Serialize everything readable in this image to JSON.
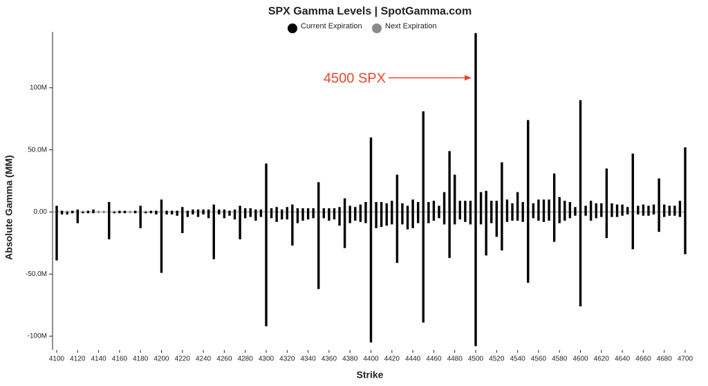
{
  "chart_data": {
    "type": "bar",
    "title": "SPX Gamma Levels | SpotGamma.com",
    "x_label": "Strike",
    "y_label": "Absolute Gamma (MM)",
    "annotation": {
      "text": "4500 SPX",
      "x": 4500,
      "y": 108,
      "color": "#e8472b"
    },
    "x": [
      4100,
      4105,
      4110,
      4115,
      4120,
      4125,
      4130,
      4135,
      4140,
      4145,
      4150,
      4155,
      4160,
      4165,
      4170,
      4175,
      4180,
      4185,
      4190,
      4195,
      4200,
      4205,
      4210,
      4215,
      4220,
      4225,
      4230,
      4235,
      4240,
      4245,
      4250,
      4255,
      4260,
      4265,
      4270,
      4275,
      4280,
      4285,
      4290,
      4295,
      4300,
      4305,
      4310,
      4315,
      4320,
      4325,
      4330,
      4335,
      4340,
      4345,
      4350,
      4355,
      4360,
      4365,
      4370,
      4375,
      4380,
      4385,
      4390,
      4395,
      4400,
      4405,
      4410,
      4415,
      4420,
      4425,
      4430,
      4435,
      4440,
      4445,
      4450,
      4455,
      4460,
      4465,
      4470,
      4475,
      4480,
      4485,
      4490,
      4495,
      4500,
      4505,
      4510,
      4515,
      4520,
      4525,
      4530,
      4535,
      4540,
      4545,
      4550,
      4555,
      4560,
      4565,
      4570,
      4575,
      4580,
      4585,
      4590,
      4595,
      4600,
      4605,
      4610,
      4615,
      4620,
      4625,
      4630,
      4635,
      4640,
      4645,
      4650,
      4655,
      4660,
      4665,
      4670,
      4675,
      4680,
      4685,
      4690,
      4695,
      4700
    ],
    "series": [
      {
        "name": "Next Expiration",
        "color": "#8a8a8a",
        "values": [
          1,
          1,
          1,
          1,
          1,
          1,
          1,
          1,
          1,
          1,
          1,
          1,
          1,
          1,
          1,
          1,
          1,
          1,
          1,
          1,
          1,
          1,
          1,
          1,
          1,
          1,
          1,
          1,
          1,
          1,
          1,
          1,
          1,
          1,
          1,
          1,
          2,
          2,
          2,
          2,
          2,
          2,
          2,
          2,
          2,
          2,
          2,
          2,
          2,
          2,
          2,
          2,
          2,
          2,
          2,
          2,
          2,
          2,
          2,
          2,
          2,
          2,
          2,
          2,
          2,
          2,
          2,
          2,
          2,
          2,
          2,
          2,
          2,
          2,
          2,
          2,
          2,
          2,
          2,
          2,
          2,
          2,
          2,
          2,
          2,
          1,
          1,
          1,
          1,
          1,
          1,
          1,
          1,
          1,
          1,
          1,
          1,
          1,
          1,
          1,
          1,
          1,
          1,
          1,
          1,
          1,
          1,
          1,
          1,
          1,
          1,
          1,
          1,
          1,
          1,
          1,
          1,
          1,
          1,
          1,
          1
        ],
        "lower_values": [
          -1,
          -1,
          -1,
          -1,
          -1,
          -1,
          -1,
          -1,
          -1,
          -1,
          -1,
          -1,
          -1,
          -1,
          -1,
          -1,
          -1,
          -1,
          -1,
          -1,
          -1,
          -1,
          -1,
          -1,
          -1,
          -1,
          -1,
          -1,
          -1,
          -1,
          -1,
          -1,
          -1,
          -1,
          -1,
          -1,
          -3,
          -3,
          -3,
          -3,
          -3,
          -3,
          -3,
          -3,
          -3,
          -3,
          -3,
          -3,
          -3,
          -3,
          -3,
          -3,
          -3,
          -3,
          -3,
          -3,
          -3,
          -3,
          -3,
          -3,
          -3,
          -3,
          -3,
          -3,
          -3,
          -3,
          -3,
          -3,
          -3,
          -3,
          -3,
          -3,
          -3,
          -3,
          -3,
          -3,
          -3,
          -3,
          -3,
          -3,
          -3,
          -3,
          -3,
          -3,
          -3,
          -1,
          -1,
          -1,
          -1,
          -1,
          -1,
          -1,
          -1,
          -1,
          -1,
          -1,
          -1,
          -1,
          -1,
          -1,
          -1,
          -1,
          -1,
          -1,
          -1,
          -1,
          -1,
          -1,
          -1,
          -1,
          -1,
          -1,
          -1,
          -1,
          -1,
          -1,
          -1,
          -1,
          -1,
          -1,
          -1
        ]
      },
      {
        "name": "Current Expiration",
        "color": "#000000",
        "values": [
          5,
          1,
          0,
          1,
          2,
          0,
          1,
          2,
          0,
          0,
          8,
          0,
          1,
          1,
          0,
          1,
          5,
          0,
          1,
          1,
          10,
          1,
          1,
          1,
          4,
          1,
          2,
          2,
          2,
          2,
          6,
          2,
          2,
          1,
          2,
          5,
          3,
          3,
          2,
          2,
          39,
          3,
          4,
          2,
          4,
          6,
          3,
          3,
          3,
          3,
          24,
          3,
          3,
          3,
          4,
          11,
          5,
          4,
          6,
          8,
          60,
          8,
          8,
          7,
          9,
          30,
          7,
          5,
          10,
          8,
          81,
          8,
          9,
          5,
          16,
          49,
          30,
          9,
          9,
          9,
          144,
          16,
          17,
          9,
          9,
          40,
          10,
          7,
          16,
          8,
          74,
          7,
          10,
          10,
          10,
          31,
          12,
          9,
          8,
          4,
          90,
          5,
          9,
          7,
          7,
          35,
          7,
          6,
          6,
          4,
          47,
          5,
          6,
          5,
          6,
          27,
          6,
          5,
          5,
          9,
          52
        ],
        "lower_values": [
          -39,
          -2,
          -2,
          -1,
          -9,
          -1,
          -1,
          -1,
          0,
          0,
          -22,
          -1,
          -1,
          -1,
          0,
          -1,
          -13,
          -1,
          -1,
          -2,
          -49,
          -2,
          -2,
          -3,
          -17,
          -4,
          -2,
          -4,
          -2,
          -5,
          -38,
          -2,
          -5,
          -3,
          -6,
          -22,
          -5,
          -4,
          -7,
          -4,
          -92,
          -5,
          -8,
          -6,
          -6,
          -27,
          -9,
          -7,
          -6,
          -5,
          -62,
          -5,
          -7,
          -6,
          -11,
          -29,
          -9,
          -7,
          -8,
          -9,
          -105,
          -13,
          -12,
          -11,
          -10,
          -41,
          -10,
          -14,
          -13,
          -9,
          -89,
          -9,
          -7,
          -5,
          -10,
          -37,
          -10,
          -6,
          -8,
          -10,
          -108,
          -10,
          -35,
          -9,
          -20,
          -31,
          -8,
          -7,
          -7,
          -8,
          -57,
          -5,
          -7,
          -8,
          -7,
          -24,
          -9,
          -7,
          -5,
          -3,
          -76,
          -3,
          -7,
          -5,
          -4,
          -21,
          -4,
          -4,
          -3,
          -2,
          -30,
          -2,
          -3,
          -3,
          -2,
          -16,
          -4,
          -3,
          -3,
          -4,
          -34
        ]
      }
    ],
    "xlim": [
      4100,
      4700
    ],
    "xticks": [
      4100,
      4120,
      4140,
      4160,
      4180,
      4200,
      4220,
      4240,
      4260,
      4280,
      4300,
      4320,
      4340,
      4360,
      4380,
      4400,
      4420,
      4440,
      4460,
      4480,
      4500,
      4520,
      4540,
      4560,
      4580,
      4600,
      4620,
      4640,
      4660,
      4680,
      4700
    ],
    "ylim": [
      -110,
      145
    ],
    "yticks": [
      {
        "value": 100,
        "label": "100M"
      },
      {
        "value": 50,
        "label": "50.0M"
      },
      {
        "value": 0,
        "label": "0.00"
      },
      {
        "value": -50,
        "label": "-50.0M"
      },
      {
        "value": -100,
        "label": "-100M"
      }
    ],
    "grid": false
  }
}
